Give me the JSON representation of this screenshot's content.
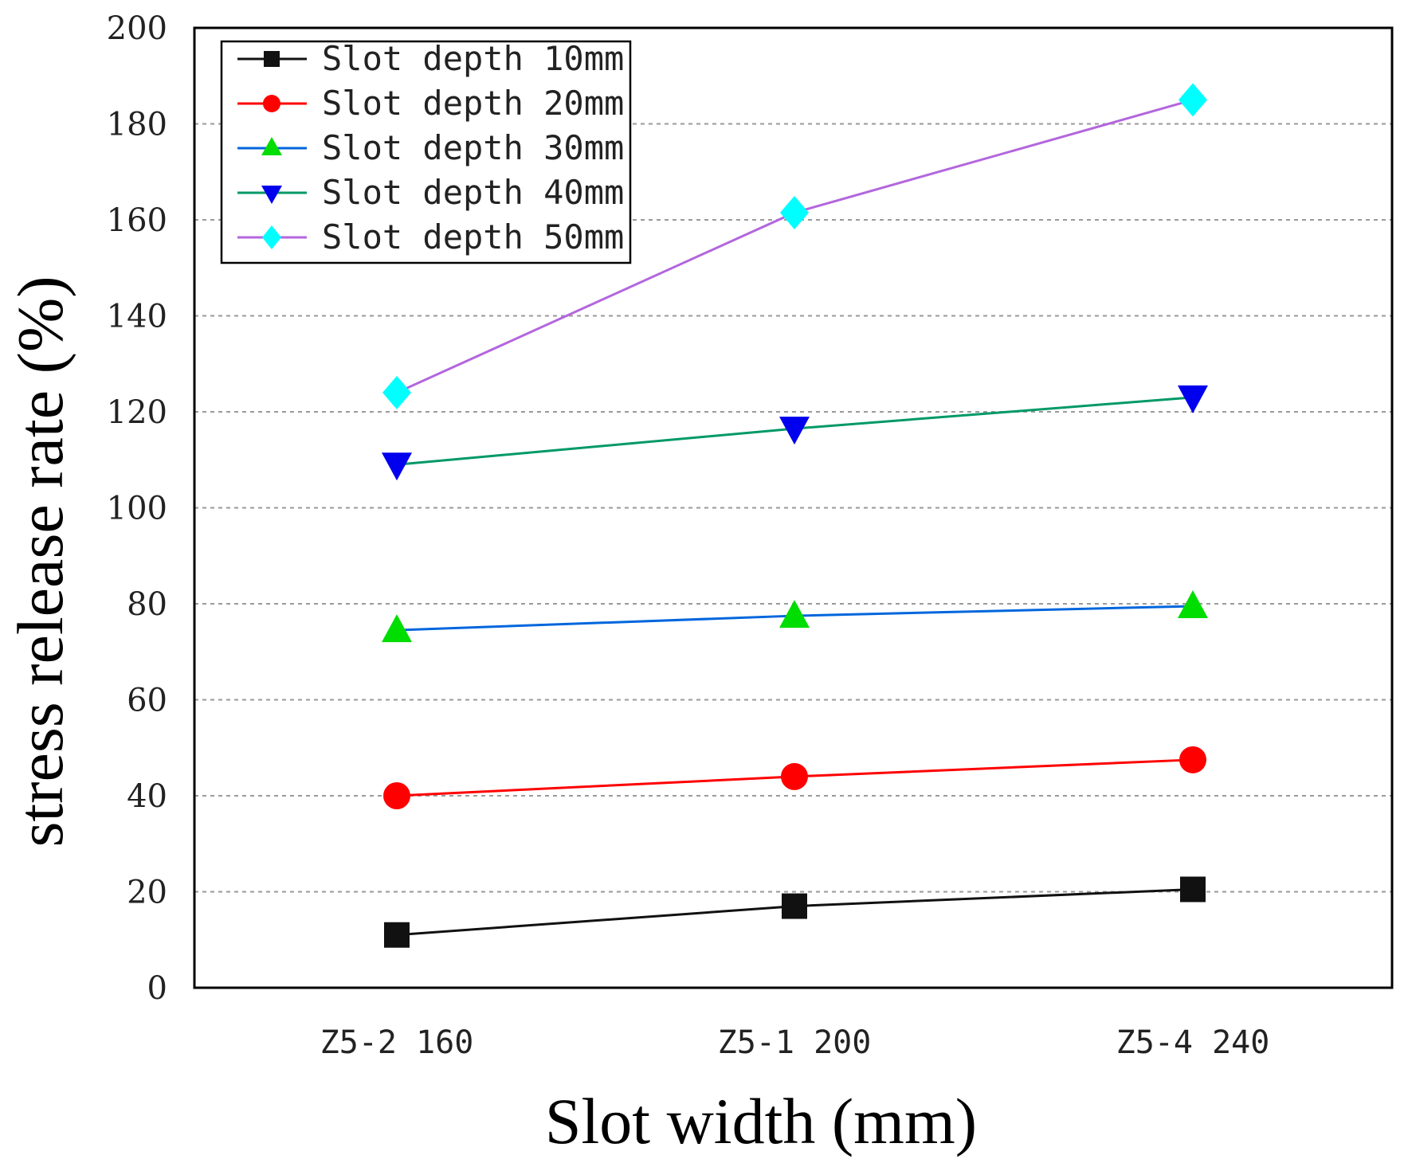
{
  "chart_data": {
    "type": "line",
    "title": "",
    "xlabel": "Slot width (mm)",
    "ylabel": "stress release rate (%)",
    "categories": [
      "Z5-2  160",
      "Z5-1  200",
      "Z5-4  240"
    ],
    "ylim": [
      0,
      200
    ],
    "yticks": [
      0,
      20,
      40,
      60,
      80,
      100,
      120,
      140,
      160,
      180,
      200
    ],
    "grid": true,
    "legend_position": "top-left",
    "series": [
      {
        "name": "Slot depth 10mm",
        "marker": "square",
        "color": "#111111",
        "values": [
          11,
          17,
          20.5
        ]
      },
      {
        "name": "Slot depth 20mm",
        "marker": "circle",
        "color": "#ff0000",
        "values": [
          40,
          44,
          47.5
        ]
      },
      {
        "name": "Slot depth 30mm",
        "marker": "triangle-up",
        "color": "#0066dd",
        "marker_color": "#00dd00",
        "values": [
          74.5,
          77.5,
          79.5
        ]
      },
      {
        "name": "Slot depth 40mm",
        "marker": "triangle-down",
        "color": "#009966",
        "marker_color": "#0000ee",
        "values": [
          109,
          116.5,
          123
        ]
      },
      {
        "name": "Slot depth 50mm",
        "marker": "diamond",
        "color": "#b366dd",
        "marker_color": "#00ffff",
        "values": [
          124,
          161.5,
          185
        ]
      }
    ]
  }
}
